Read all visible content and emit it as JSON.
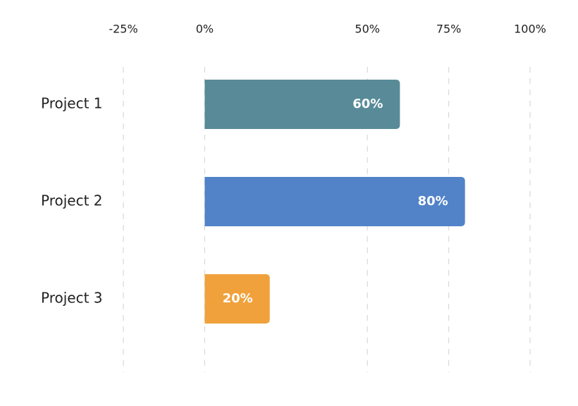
{
  "chart_data": {
    "type": "barh",
    "categories": [
      "Project 1",
      "Project 2",
      "Project 3"
    ],
    "values": [
      60,
      80,
      20
    ],
    "value_labels": [
      "60%",
      "80%",
      "20%"
    ],
    "colors": [
      "#588b97",
      "#5283c8",
      "#f0a13b"
    ],
    "xlim": [
      -25,
      100
    ],
    "xticks": [
      {
        "value": -25,
        "label": "-25%"
      },
      {
        "value": 0,
        "label": "0%"
      },
      {
        "value": 50,
        "label": "50%"
      },
      {
        "value": 75,
        "label": "75%"
      },
      {
        "value": 100,
        "label": "100%"
      }
    ],
    "grid": true
  }
}
